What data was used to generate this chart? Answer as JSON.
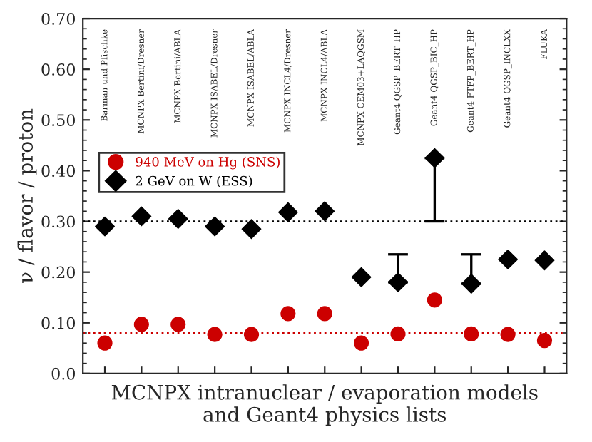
{
  "chart_data": {
    "type": "scatter",
    "categories": [
      "Barman und Pfischke",
      "MCNPX Bertini/Dresner",
      "MCNPX Bertini/ABLA",
      "MCNPX ISABEL/Dresner",
      "MCNPX ISABEL/ABLA",
      "MCNPX INCL4/Dresner",
      "MCNPX INCL4/ABLA",
      "MCNPX CEM03+LAQGSM",
      "Geant4 QGSP_BERT_HP",
      "Geant4 QGSP_BIC_HP",
      "Geant4 FTFP_BERT_HP",
      "Geant4 QGSP_INCLXX",
      "FLUKA"
    ],
    "xlabel": "MCNPX intranuclear / evaporation models\nand Geant4 physics lists",
    "ylabel": "ν / flavor / proton",
    "series": [
      {
        "name": "940 MeV on Hg (SNS)",
        "color": "#cc0000",
        "marker": "circle",
        "values": [
          0.06,
          0.097,
          0.097,
          0.077,
          0.077,
          0.118,
          0.118,
          0.06,
          0.078,
          0.145,
          0.078,
          0.077,
          0.065
        ]
      },
      {
        "name": "2 GeV on W (ESS)",
        "color": "#000000",
        "marker": "diamond",
        "values": [
          0.29,
          0.31,
          0.305,
          0.29,
          0.285,
          0.318,
          0.32,
          0.19,
          0.18,
          0.425,
          0.177,
          0.225,
          0.223
        ],
        "errors": [
          null,
          null,
          null,
          null,
          null,
          null,
          null,
          null,
          [
            0.18,
            0.235
          ],
          [
            0.3,
            0.425
          ],
          [
            0.177,
            0.235
          ],
          null,
          null
        ]
      }
    ],
    "ref_lines": [
      {
        "axis": "y",
        "value": 0.3,
        "color": "#000000",
        "line_style": "dotted"
      },
      {
        "axis": "y",
        "value": 0.08,
        "color": "#cc0000",
        "line_style": "dotted"
      }
    ],
    "ylim": [
      0,
      0.7
    ],
    "yticks": [
      {
        "value": 0,
        "label": "0.0"
      },
      {
        "value": 0.1,
        "label": "0.10"
      },
      {
        "value": 0.2,
        "label": "0.20"
      },
      {
        "value": 0.3,
        "label": "0.30"
      },
      {
        "value": 0.4,
        "label": "0.40"
      },
      {
        "value": 0.5,
        "label": "0.50"
      },
      {
        "value": 0.6,
        "label": "0.60"
      },
      {
        "value": 0.7,
        "label": "0.70"
      }
    ],
    "grid": false,
    "legend": "top left"
  }
}
